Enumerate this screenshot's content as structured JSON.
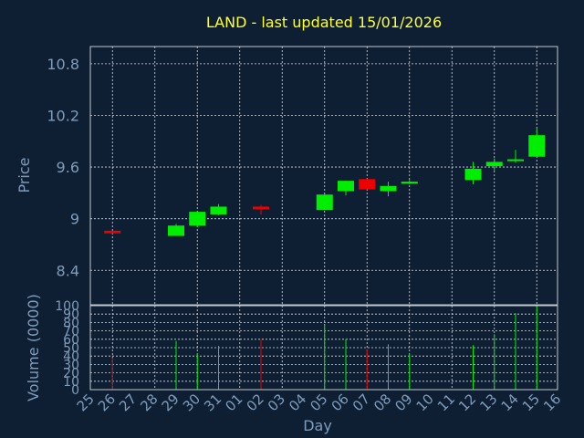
{
  "chart_data": {
    "type": "candlestick",
    "title": "LAND - last updated 15/01/2026",
    "xlabel": "Day",
    "price_panel": {
      "ylabel": "Price",
      "yticks": [
        "8.4",
        "9",
        "9.6",
        "10.2",
        "10.8"
      ],
      "ylim": [
        8.0,
        11.0
      ]
    },
    "volume_panel": {
      "ylabel": "Volume (0000)",
      "yticks": [
        "0",
        "10",
        "20",
        "30",
        "40",
        "50",
        "60",
        "70",
        "80",
        "90",
        "100"
      ],
      "ylim": [
        0,
        100
      ]
    },
    "x_ticks": [
      "25",
      "26",
      "27",
      "28",
      "29",
      "30",
      "31",
      "01",
      "02",
      "03",
      "04",
      "05",
      "06",
      "07",
      "08",
      "09",
      "10",
      "11",
      "12",
      "13",
      "14",
      "15",
      "16"
    ],
    "up_color": "#00ee00",
    "down_color": "#ee0000",
    "candles": [
      {
        "day": "26",
        "open": 8.86,
        "close": 8.83,
        "high": 8.86,
        "low": 8.83,
        "volume": 38
      },
      {
        "day": "29",
        "open": 8.8,
        "close": 8.92,
        "high": 8.94,
        "low": 8.8,
        "volume": 58
      },
      {
        "day": "30",
        "open": 8.92,
        "close": 9.08,
        "high": 9.08,
        "low": 8.9,
        "volume": 43
      },
      {
        "day": "31",
        "open": 9.05,
        "close": 9.14,
        "high": 9.17,
        "low": 9.04,
        "volume": 52
      },
      {
        "day": "02",
        "open": 9.14,
        "close": 9.11,
        "high": 9.16,
        "low": 9.05,
        "volume": 60
      },
      {
        "day": "05",
        "open": 9.1,
        "close": 9.28,
        "high": 9.28,
        "low": 9.1,
        "volume": 77
      },
      {
        "day": "06",
        "open": 9.32,
        "close": 9.44,
        "high": 9.44,
        "low": 9.27,
        "volume": 60
      },
      {
        "day": "07",
        "open": 9.46,
        "close": 9.34,
        "high": 9.46,
        "low": 9.34,
        "volume": 48
      },
      {
        "day": "08",
        "open": 9.32,
        "close": 9.38,
        "high": 9.43,
        "low": 9.26,
        "volume": 54
      },
      {
        "day": "09",
        "open": 9.42,
        "close": 9.43,
        "high": 9.45,
        "low": 9.4,
        "volume": 42
      },
      {
        "day": "12",
        "open": 9.45,
        "close": 9.58,
        "high": 9.66,
        "low": 9.4,
        "volume": 53
      },
      {
        "day": "13",
        "open": 9.61,
        "close": 9.66,
        "high": 9.7,
        "low": 9.56,
        "volume": 66
      },
      {
        "day": "14",
        "open": 9.69,
        "close": 9.69,
        "high": 9.8,
        "low": 9.65,
        "volume": 91
      },
      {
        "day": "15",
        "open": 9.72,
        "close": 9.97,
        "high": 10.05,
        "low": 9.72,
        "volume": 100
      }
    ]
  }
}
